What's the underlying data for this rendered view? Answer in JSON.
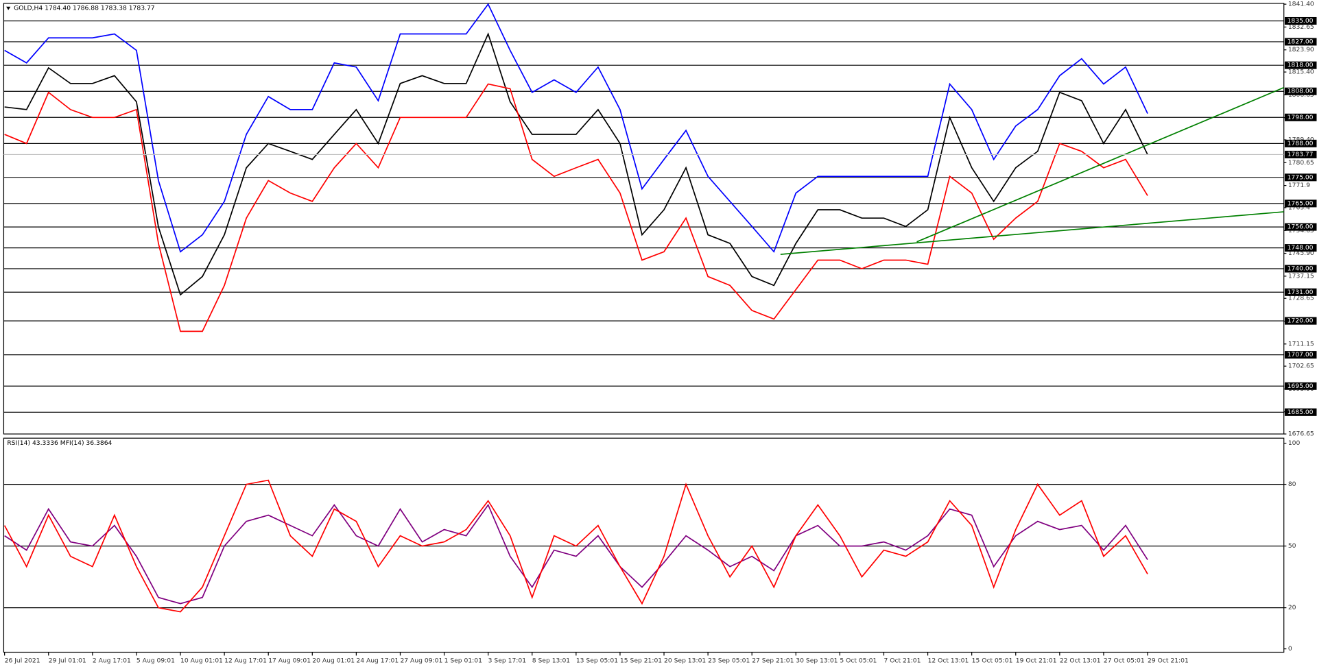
{
  "chart_data": [
    {
      "type": "line",
      "title": "GOLD,H4  1784.40 1786.88 1783.38 1783.77",
      "ylim": [
        1676.65,
        1841.4
      ],
      "yticks": [
        {
          "value": 1841.4,
          "label": "1841.40"
        },
        1832.65,
        {
          "value": 1823.9,
          "label": "1823.90"
        },
        {
          "value": 1815.4,
          "label": "1815.40"
        },
        1806.65,
        {
          "value": 1797.9,
          "label": "1797.90"
        },
        {
          "value": 1789.4,
          "label": "1789.40"
        },
        1780.65,
        1771.9,
        1763.4,
        1754.65,
        {
          "value": 1745.9,
          "label": "1745.90"
        },
        1737.15,
        1728.65,
        {
          "value": 1719.9,
          "label": "1719.90"
        },
        1711.15,
        1702.65,
        {
          "value": 1693.9,
          "label": "1693.90"
        },
        1685.15,
        1676.65
      ],
      "levels": [
        {
          "value": 1835,
          "label": "1835.00"
        },
        {
          "value": 1827,
          "label": "1827.00"
        },
        {
          "value": 1818,
          "label": "1818.00"
        },
        {
          "value": 1808,
          "label": "1808.00"
        },
        {
          "value": 1798,
          "label": "1798.00"
        },
        {
          "value": 1788,
          "label": "1788.00"
        },
        {
          "value": 1775,
          "label": "1775.00"
        },
        {
          "value": 1765,
          "label": "1765.00"
        },
        {
          "value": 1756,
          "label": "1756.00"
        },
        {
          "value": 1748,
          "label": "1748.00"
        },
        {
          "value": 1740,
          "label": "1740.00"
        },
        {
          "value": 1731,
          "label": "1731.00"
        },
        {
          "value": 1720,
          "label": "1720.00"
        },
        {
          "value": 1707,
          "label": "1707.00"
        },
        {
          "value": 1695,
          "label": "1695.00"
        },
        {
          "value": 1685,
          "label": "1685.00"
        }
      ],
      "current_price": 1783.77,
      "series": [
        {
          "color": "#000000",
          "values": [
            1802,
            1801,
            1817,
            1811,
            1811,
            1814,
            1804,
            1756,
            1730,
            1737,
            1753,
            1778.7,
            1788,
            1785,
            1781.9,
            1791.5,
            1801,
            1788,
            1811,
            1814,
            1811,
            1811,
            1830,
            1804,
            1791.5,
            1791.5,
            1791.5,
            1801,
            1788,
            1753,
            1762.6,
            1778.7,
            1753,
            1749.7,
            1737,
            1733.6,
            1749.7,
            1762.6,
            1762.6,
            1759.4,
            1759.4,
            1756.2,
            1762.6,
            1798,
            1778.7,
            1765.8,
            1778.7,
            1785,
            1807.6,
            1804.4,
            1788,
            1801,
            1783.77
          ]
        },
        {
          "color": "#0000ff",
          "values": [
            1823.7,
            1818.9,
            1828.5,
            1828.5,
            1828.5,
            1830,
            1823.7,
            1773.8,
            1746.5,
            1753,
            1765.8,
            1791.5,
            1806,
            1801,
            1801,
            1818.9,
            1817.3,
            1804.4,
            1830,
            1830,
            1830,
            1830,
            1841.4,
            1823.7,
            1807.6,
            1812.4,
            1807.6,
            1817.3,
            1801,
            1770.6,
            1781.9,
            1793,
            1775.4,
            1765.8,
            1756.2,
            1746.5,
            1769,
            1775.4,
            1775.4,
            1775.4,
            1775.4,
            1775.4,
            1775.4,
            1810.8,
            1801,
            1781.9,
            1794.7,
            1801,
            1814,
            1820.5,
            1810.8,
            1817.3,
            1799.5
          ]
        },
        {
          "color": "#ff0000",
          "values": [
            1791.5,
            1788,
            1807.6,
            1801,
            1798,
            1798,
            1801,
            1749.7,
            1716,
            1716,
            1733.6,
            1759.4,
            1773.8,
            1769,
            1765.8,
            1778.7,
            1788,
            1778.7,
            1798,
            1798,
            1798,
            1798,
            1810.8,
            1809,
            1781.9,
            1775.4,
            1778.7,
            1781.9,
            1769,
            1743.3,
            1746.5,
            1759.4,
            1737,
            1733.6,
            1724,
            1720.7,
            1732,
            1743.3,
            1743.3,
            1740,
            1743.3,
            1743.3,
            1741.7,
            1775.4,
            1769,
            1751.3,
            1759.4,
            1765.8,
            1788,
            1785,
            1778.7,
            1781.9,
            1768
          ]
        }
      ],
      "trendlines": [
        {
          "color": "#008000",
          "x": [
            35.3,
            58.3
          ],
          "y": [
            1745.5,
            1761.9
          ]
        },
        {
          "color": "#008000",
          "x": [
            41.5,
            58.3
          ],
          "y": [
            1750.3,
            1809.8
          ]
        }
      ]
    },
    {
      "type": "line",
      "title": "RSI(14) 43.3336  MFI(14) 36.3864",
      "ylim": [
        0,
        100
      ],
      "yticks": [
        0,
        20,
        50,
        80,
        100
      ],
      "levels": [
        20,
        50,
        80
      ],
      "xlim": [
        0,
        58.2
      ],
      "categories": [
        "26 Jul 2021",
        null,
        "29 Jul 01:01",
        null,
        "2 Aug 17:01",
        null,
        "5 Aug 09:01",
        null,
        "10 Aug 01:01",
        null,
        "12 Aug 17:01",
        null,
        "17 Aug 09:01",
        null,
        "20 Aug 01:01",
        null,
        "24 Aug 17:01",
        null,
        "27 Aug 09:01",
        null,
        "1 Sep 01:01",
        null,
        "3 Sep 17:01",
        null,
        "8 Sep 13:01",
        null,
        "13 Sep 05:01",
        null,
        "15 Sep 21:01",
        null,
        "20 Sep 13:01",
        null,
        "23 Sep 05:01",
        null,
        "27 Sep 21:01",
        null,
        "30 Sep 13:01",
        null,
        "5 Oct 05:01",
        null,
        "7 Oct 21:01",
        null,
        "12 Oct 13:01",
        null,
        "15 Oct 05:01",
        null,
        "19 Oct 21:01",
        null,
        "22 Oct 13:01",
        null,
        "27 Oct 05:01",
        null,
        "29 Oct 21:01"
      ],
      "series": [
        {
          "color": "#800080",
          "values": [
            55,
            48,
            68,
            52,
            50,
            60,
            45,
            25,
            22,
            25,
            50,
            62,
            65,
            60,
            55,
            70,
            55,
            50,
            68,
            52,
            58,
            55,
            70,
            45,
            30,
            48,
            45,
            55,
            40,
            30,
            42,
            55,
            48,
            40,
            45,
            38,
            55,
            60,
            50,
            50,
            52,
            48,
            55,
            68,
            65,
            40,
            55,
            62,
            58,
            60,
            48,
            60,
            43.3336
          ]
        },
        {
          "color": "#ff0000",
          "values": [
            60,
            40,
            65,
            45,
            40,
            65,
            40,
            20,
            18,
            30,
            55,
            80,
            82,
            55,
            45,
            68,
            62,
            40,
            55,
            50,
            52,
            58,
            72,
            55,
            25,
            55,
            50,
            60,
            40,
            22,
            45,
            80,
            55,
            35,
            50,
            30,
            55,
            70,
            55,
            35,
            48,
            45,
            52,
            72,
            60,
            30,
            58,
            80,
            65,
            72,
            45,
            55,
            36.3864
          ]
        }
      ]
    }
  ]
}
